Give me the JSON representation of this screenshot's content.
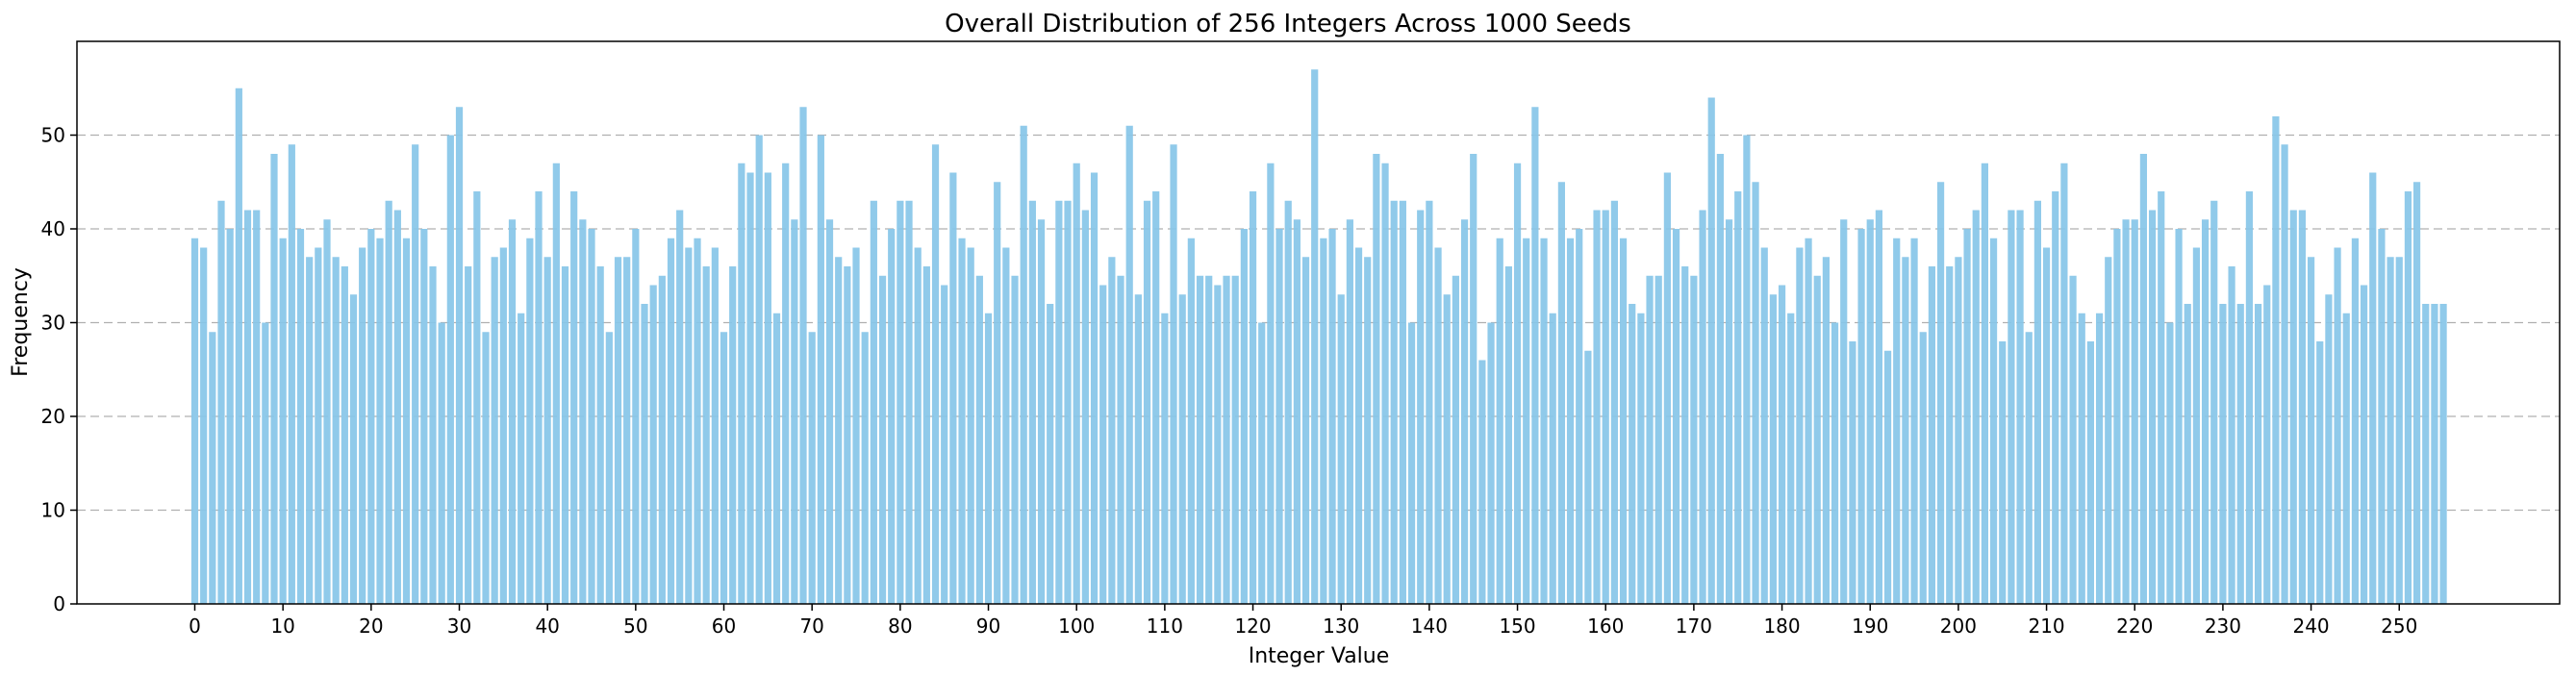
{
  "chart_data": {
    "type": "bar",
    "title": "Overall Distribution of 256 Integers Across 1000 Seeds",
    "xlabel": "Integer Value",
    "ylabel": "Frequency",
    "x_range": [
      0,
      255
    ],
    "ylim": [
      0,
      60
    ],
    "xticks": [
      0,
      10,
      20,
      30,
      40,
      50,
      60,
      70,
      80,
      90,
      100,
      110,
      120,
      130,
      140,
      150,
      160,
      170,
      180,
      190,
      200,
      210,
      220,
      230,
      240,
      250
    ],
    "yticks": [
      0,
      10,
      20,
      30,
      40,
      50
    ],
    "grid": "y-dashed",
    "bar_color": "#87c6e8",
    "values": [
      39,
      38,
      29,
      43,
      40,
      55,
      42,
      42,
      30,
      48,
      39,
      49,
      40,
      37,
      38,
      41,
      37,
      36,
      33,
      38,
      40,
      39,
      43,
      42,
      39,
      49,
      40,
      36,
      30,
      50,
      53,
      36,
      44,
      29,
      37,
      38,
      41,
      31,
      39,
      44,
      37,
      47,
      36,
      44,
      41,
      40,
      36,
      29,
      37,
      37,
      40,
      32,
      34,
      35,
      39,
      42,
      38,
      39,
      36,
      38,
      29,
      36,
      47,
      46,
      50,
      46,
      31,
      47,
      41,
      53,
      29,
      50,
      41,
      37,
      36,
      38,
      29,
      43,
      35,
      40,
      43,
      43,
      38,
      36,
      49,
      34,
      46,
      39,
      38,
      35,
      31,
      45,
      38,
      35,
      51,
      43,
      41,
      32,
      43,
      43,
      47,
      42,
      46,
      34,
      37,
      35,
      51,
      33,
      43,
      44,
      31,
      49,
      33,
      39,
      35,
      35,
      34,
      35,
      35,
      40,
      44,
      30,
      47,
      40,
      43,
      41,
      37,
      57,
      39,
      40,
      33,
      41,
      38,
      37,
      48,
      47,
      43,
      43,
      30,
      42,
      43,
      38,
      33,
      35,
      41,
      48,
      26,
      30,
      39,
      36,
      47,
      39,
      53,
      39,
      31,
      45,
      39,
      40,
      27,
      42,
      42,
      43,
      39,
      32,
      31,
      35,
      35,
      46,
      40,
      36,
      35,
      42,
      54,
      48,
      41,
      44,
      50,
      45,
      38,
      33,
      34,
      31,
      38,
      39,
      35,
      37,
      30,
      41,
      28,
      40,
      41,
      42,
      27,
      39,
      37,
      39,
      29,
      36,
      45,
      36,
      37,
      40,
      42,
      47,
      39,
      28,
      42,
      42,
      29,
      43,
      38,
      44,
      47,
      35,
      31,
      28,
      31,
      37,
      40,
      41,
      41,
      48,
      42,
      44,
      30,
      40,
      32,
      38,
      41,
      43,
      32,
      36,
      32,
      44,
      32,
      34,
      52,
      49,
      42,
      42,
      37,
      28,
      33,
      38,
      31,
      39,
      34,
      46,
      40,
      37,
      37,
      44,
      45,
      32,
      32,
      32
    ]
  }
}
